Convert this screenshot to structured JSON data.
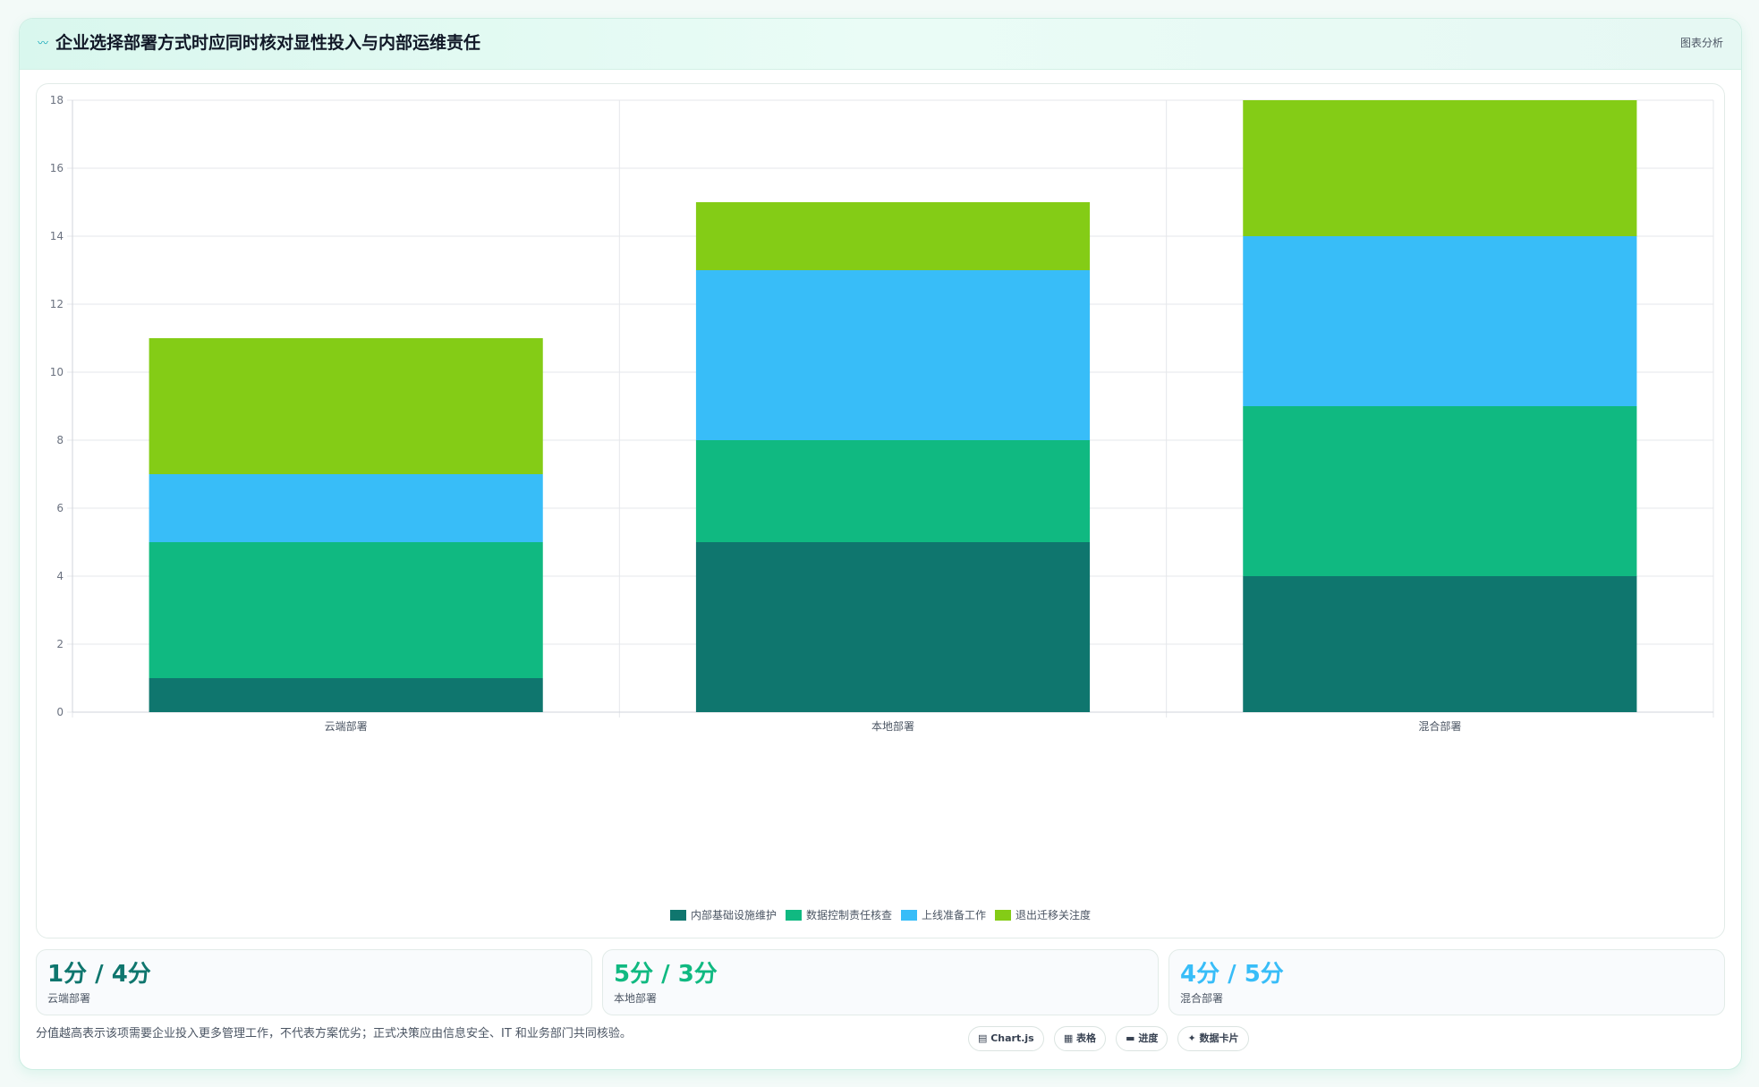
{
  "header": {
    "title": "企业选择部署方式时应同时核对显性投入与内部运维责任",
    "logo_icon": "trend-line-icon",
    "tag": "图表分析"
  },
  "chart_data": {
    "type": "bar",
    "stacked": true,
    "categories": [
      "云端部署",
      "本地部署",
      "混合部署"
    ],
    "series": [
      {
        "name": "内部基础设施维护",
        "color": "#0f766e",
        "values": [
          1,
          5,
          4
        ]
      },
      {
        "name": "数据控制责任核查",
        "color": "#10b981",
        "values": [
          4,
          3,
          5
        ]
      },
      {
        "name": "上线准备工作",
        "color": "#38bdf8",
        "values": [
          2,
          5,
          5
        ]
      },
      {
        "name": "退出迁移关注度",
        "color": "#84cc16",
        "values": [
          4,
          2,
          4
        ]
      }
    ],
    "ylim": [
      0,
      18
    ],
    "yticks": [
      0,
      2,
      4,
      6,
      8,
      10,
      12,
      14,
      16,
      18
    ],
    "grid": true,
    "legend_position": "bottom"
  },
  "stats": [
    {
      "value": "1分 / 4分",
      "label": "云端部署",
      "color": "#0f766e"
    },
    {
      "value": "5分 / 3分",
      "label": "本地部署",
      "color": "#10b981"
    },
    {
      "value": "4分 / 5分",
      "label": "混合部署",
      "color": "#38bdf8"
    }
  ],
  "footnote": "分值越高表示该项需要企业投入更多管理工作，不代表方案优劣；正式决策应由信息安全、IT 和业务部门共同核验。",
  "buttons": [
    {
      "label": "▤ Chart.js",
      "icon": "chart-icon"
    },
    {
      "label": "▦ 表格",
      "icon": "table-icon"
    },
    {
      "label": "▬ 进度",
      "icon": "progress-icon"
    },
    {
      "label": "✦ 数据卡片",
      "icon": "sparkle-icon"
    }
  ]
}
